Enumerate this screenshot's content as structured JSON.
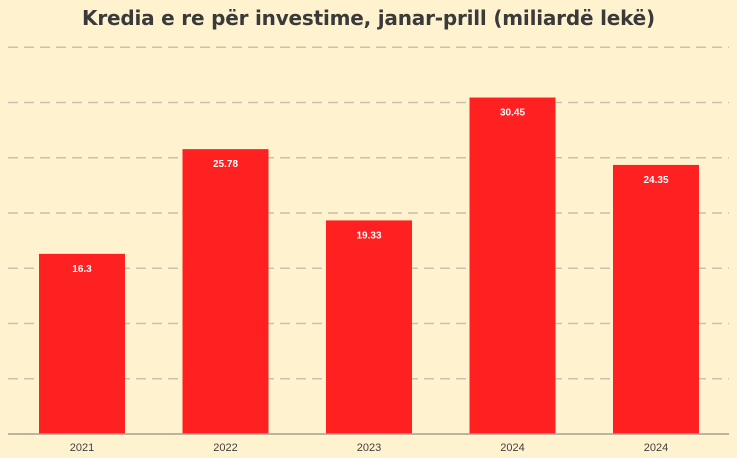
{
  "chart_data": {
    "type": "bar",
    "title": "Kredia e re për investime, janar-prill (miliardë lekë)",
    "categories": [
      "2021",
      "2022",
      "2023",
      "2024",
      "2024"
    ],
    "values": [
      16.3,
      25.78,
      19.33,
      30.45,
      24.35
    ],
    "value_labels": [
      "16.3",
      "25.78",
      "19.33",
      "30.45",
      "24.35"
    ],
    "xlabel": "",
    "ylabel": "",
    "ylim": [
      0,
      35
    ],
    "grid": true,
    "gridline_step": 5,
    "legend": "none",
    "colors": {
      "bar": "#ff2121",
      "background": "#fff3cf",
      "grid": "#c9c0ad",
      "title": "#3a3a3a"
    }
  }
}
